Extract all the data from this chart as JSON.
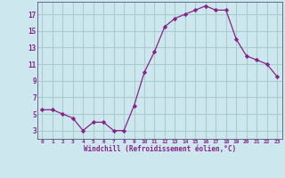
{
  "x": [
    0,
    1,
    2,
    3,
    4,
    5,
    6,
    7,
    8,
    9,
    10,
    11,
    12,
    13,
    14,
    15,
    16,
    17,
    18,
    19,
    20,
    21,
    22,
    23
  ],
  "y": [
    5.5,
    5.5,
    5.0,
    4.5,
    3.0,
    4.0,
    4.0,
    3.0,
    3.0,
    6.0,
    10.0,
    12.5,
    15.5,
    16.5,
    17.0,
    17.5,
    18.0,
    17.5,
    17.5,
    14.0,
    12.0,
    11.5,
    11.0,
    9.5
  ],
  "line_color": "#882288",
  "marker": "D",
  "marker_size": 2.2,
  "bg_color": "#cce8ee",
  "grid_color": "#aacccc",
  "xlabel": "Windchill (Refroidissement éolien,°C)",
  "xlabel_color": "#882288",
  "tick_color": "#882288",
  "axis_color": "#555577",
  "ylim": [
    2.0,
    18.5
  ],
  "xlim": [
    -0.5,
    23.5
  ],
  "yticks": [
    3,
    5,
    7,
    9,
    11,
    13,
    15,
    17
  ],
  "xticks": [
    0,
    1,
    2,
    3,
    4,
    5,
    6,
    7,
    8,
    9,
    10,
    11,
    12,
    13,
    14,
    15,
    16,
    17,
    18,
    19,
    20,
    21,
    22,
    23
  ],
  "xtick_labels": [
    "0",
    "1",
    "2",
    "3",
    "4",
    "5",
    "6",
    "7",
    "8",
    "9",
    "10",
    "11",
    "12",
    "13",
    "14",
    "15",
    "16",
    "17",
    "18",
    "19",
    "20",
    "21",
    "22",
    "23"
  ]
}
